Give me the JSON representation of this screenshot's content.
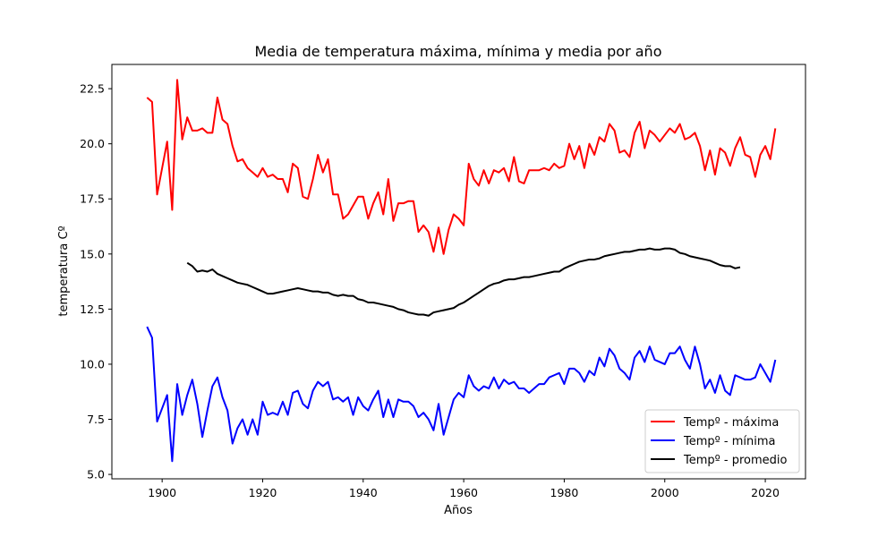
{
  "chart_data": {
    "type": "line",
    "title": "Media de temperatura máxima, mínima y media por año",
    "xlabel": "Años",
    "ylabel": "temperatura Cº",
    "xlim": [
      1890,
      2028
    ],
    "ylim": [
      4.8,
      23.6
    ],
    "xticks": [
      1900,
      1920,
      1940,
      1960,
      1980,
      2000,
      2020
    ],
    "yticks": [
      5.0,
      7.5,
      10.0,
      12.5,
      15.0,
      17.5,
      20.0,
      22.5
    ],
    "grid": false,
    "legend_position": "lower-right",
    "series": [
      {
        "name": "Tempº - máxima",
        "color": "#ff0000",
        "x": [
          1897,
          1898,
          1899,
          1900,
          1901,
          1902,
          1903,
          1904,
          1905,
          1906,
          1907,
          1908,
          1909,
          1910,
          1911,
          1912,
          1913,
          1914,
          1915,
          1916,
          1917,
          1918,
          1919,
          1920,
          1921,
          1922,
          1923,
          1924,
          1925,
          1926,
          1927,
          1928,
          1929,
          1930,
          1931,
          1932,
          1933,
          1934,
          1935,
          1936,
          1937,
          1938,
          1939,
          1940,
          1941,
          1942,
          1943,
          1944,
          1945,
          1946,
          1947,
          1948,
          1949,
          1950,
          1951,
          1952,
          1953,
          1954,
          1955,
          1956,
          1957,
          1958,
          1959,
          1960,
          1961,
          1962,
          1963,
          1964,
          1965,
          1966,
          1967,
          1968,
          1969,
          1970,
          1971,
          1972,
          1973,
          1974,
          1975,
          1976,
          1977,
          1978,
          1979,
          1980,
          1981,
          1982,
          1983,
          1984,
          1985,
          1986,
          1987,
          1988,
          1989,
          1990,
          1991,
          1992,
          1993,
          1994,
          1995,
          1996,
          1997,
          1998,
          1999,
          2000,
          2001,
          2002,
          2003,
          2004,
          2005,
          2006,
          2007,
          2008,
          2009,
          2010,
          2011,
          2012,
          2013,
          2014,
          2015,
          2016,
          2017,
          2018,
          2019,
          2020,
          2021,
          2022
        ],
        "values": [
          22.1,
          21.9,
          17.7,
          18.9,
          20.1,
          17.0,
          22.9,
          20.2,
          21.2,
          20.6,
          20.6,
          20.7,
          20.5,
          20.5,
          22.1,
          21.1,
          20.9,
          19.9,
          19.2,
          19.3,
          18.9,
          18.7,
          18.5,
          18.9,
          18.5,
          18.6,
          18.4,
          18.4,
          17.8,
          19.1,
          18.9,
          17.6,
          17.5,
          18.4,
          19.5,
          18.7,
          19.3,
          17.7,
          17.7,
          16.6,
          16.8,
          17.2,
          17.6,
          17.6,
          16.6,
          17.3,
          17.8,
          16.8,
          18.4,
          16.5,
          17.3,
          17.3,
          17.4,
          17.4,
          16.0,
          16.3,
          16.0,
          15.1,
          16.2,
          15.0,
          16.1,
          16.8,
          16.6,
          16.3,
          19.1,
          18.4,
          18.1,
          18.8,
          18.2,
          18.8,
          18.7,
          18.9,
          18.3,
          19.4,
          18.3,
          18.2,
          18.8,
          18.8,
          18.8,
          18.9,
          18.8,
          19.1,
          18.9,
          19.0,
          20.0,
          19.3,
          19.9,
          18.9,
          20.0,
          19.5,
          20.3,
          20.1,
          20.9,
          20.6,
          19.6,
          19.7,
          19.4,
          20.5,
          21.0,
          19.8,
          20.6,
          20.4,
          20.1,
          20.4,
          20.7,
          20.5,
          20.9,
          20.2,
          20.3,
          20.5,
          19.9,
          18.8,
          19.7,
          18.6,
          19.8,
          19.6,
          19.0,
          19.8,
          20.3,
          19.5,
          19.4,
          18.5,
          19.5,
          19.9,
          19.3,
          20.7
        ]
      },
      {
        "name": "Tempº - mínima",
        "color": "#0000ff",
        "x": [
          1897,
          1898,
          1899,
          1900,
          1901,
          1902,
          1903,
          1904,
          1905,
          1906,
          1907,
          1908,
          1909,
          1910,
          1911,
          1912,
          1913,
          1914,
          1915,
          1916,
          1917,
          1918,
          1919,
          1920,
          1921,
          1922,
          1923,
          1924,
          1925,
          1926,
          1927,
          1928,
          1929,
          1930,
          1931,
          1932,
          1933,
          1934,
          1935,
          1936,
          1937,
          1938,
          1939,
          1940,
          1941,
          1942,
          1943,
          1944,
          1945,
          1946,
          1947,
          1948,
          1949,
          1950,
          1951,
          1952,
          1953,
          1954,
          1955,
          1956,
          1957,
          1958,
          1959,
          1960,
          1961,
          1962,
          1963,
          1964,
          1965,
          1966,
          1967,
          1968,
          1969,
          1970,
          1971,
          1972,
          1973,
          1974,
          1975,
          1976,
          1977,
          1978,
          1979,
          1980,
          1981,
          1982,
          1983,
          1984,
          1985,
          1986,
          1987,
          1988,
          1989,
          1990,
          1991,
          1992,
          1993,
          1994,
          1995,
          1996,
          1997,
          1998,
          1999,
          2000,
          2001,
          2002,
          2003,
          2004,
          2005,
          2006,
          2007,
          2008,
          2009,
          2010,
          2011,
          2012,
          2013,
          2014,
          2015,
          2016,
          2017,
          2018,
          2019,
          2020,
          2021,
          2022
        ],
        "values": [
          11.7,
          11.2,
          7.4,
          8.0,
          8.6,
          5.6,
          9.1,
          7.7,
          8.6,
          9.3,
          8.2,
          6.7,
          7.9,
          9.0,
          9.4,
          8.5,
          7.9,
          6.4,
          7.1,
          7.5,
          6.8,
          7.5,
          6.8,
          8.3,
          7.7,
          7.8,
          7.7,
          8.3,
          7.7,
          8.7,
          8.8,
          8.2,
          8.0,
          8.8,
          9.2,
          9.0,
          9.2,
          8.4,
          8.5,
          8.3,
          8.5,
          7.7,
          8.5,
          8.1,
          7.9,
          8.4,
          8.8,
          7.6,
          8.4,
          7.6,
          8.4,
          8.3,
          8.3,
          8.1,
          7.6,
          7.8,
          7.5,
          7.0,
          8.2,
          6.8,
          7.6,
          8.4,
          8.7,
          8.5,
          9.5,
          9.0,
          8.8,
          9.0,
          8.9,
          9.4,
          8.9,
          9.3,
          9.1,
          9.2,
          8.9,
          8.9,
          8.7,
          8.9,
          9.1,
          9.1,
          9.4,
          9.5,
          9.6,
          9.1,
          9.8,
          9.8,
          9.6,
          9.2,
          9.7,
          9.5,
          10.3,
          9.9,
          10.7,
          10.4,
          9.8,
          9.6,
          9.3,
          10.3,
          10.6,
          10.1,
          10.8,
          10.2,
          10.1,
          10.0,
          10.5,
          10.5,
          10.8,
          10.2,
          9.8,
          10.8,
          10.0,
          8.9,
          9.3,
          8.7,
          9.5,
          8.8,
          8.6,
          9.5,
          9.4,
          9.3,
          9.3,
          9.4,
          10.0,
          9.6,
          9.2,
          10.2
        ]
      },
      {
        "name": "Tempº - promedio",
        "color": "#000000",
        "x": [
          1905,
          1906,
          1907,
          1908,
          1909,
          1910,
          1911,
          1912,
          1913,
          1914,
          1915,
          1916,
          1917,
          1918,
          1919,
          1920,
          1921,
          1922,
          1923,
          1924,
          1925,
          1926,
          1927,
          1928,
          1929,
          1930,
          1931,
          1932,
          1933,
          1934,
          1935,
          1936,
          1937,
          1938,
          1939,
          1940,
          1941,
          1942,
          1943,
          1944,
          1945,
          1946,
          1947,
          1948,
          1949,
          1950,
          1951,
          1952,
          1953,
          1954,
          1955,
          1956,
          1957,
          1958,
          1959,
          1960,
          1961,
          1962,
          1963,
          1964,
          1965,
          1966,
          1967,
          1968,
          1969,
          1970,
          1971,
          1972,
          1973,
          1974,
          1975,
          1976,
          1977,
          1978,
          1979,
          1980,
          1981,
          1982,
          1983,
          1984,
          1985,
          1986,
          1987,
          1988,
          1989,
          1990,
          1991,
          1992,
          1993,
          1994,
          1995,
          1996,
          1997,
          1998,
          1999,
          2000,
          2001,
          2002,
          2003,
          2004,
          2005,
          2006,
          2007,
          2008,
          2009,
          2010,
          2011,
          2012,
          2013,
          2014,
          2015
        ],
        "values": [
          14.6,
          14.45,
          14.2,
          14.25,
          14.2,
          14.3,
          14.1,
          14.0,
          13.9,
          13.8,
          13.7,
          13.65,
          13.6,
          13.5,
          13.4,
          13.3,
          13.2,
          13.2,
          13.25,
          13.3,
          13.35,
          13.4,
          13.45,
          13.4,
          13.35,
          13.3,
          13.3,
          13.25,
          13.25,
          13.15,
          13.1,
          13.15,
          13.1,
          13.1,
          12.95,
          12.9,
          12.8,
          12.8,
          12.75,
          12.7,
          12.65,
          12.6,
          12.5,
          12.45,
          12.35,
          12.3,
          12.25,
          12.25,
          12.2,
          12.35,
          12.4,
          12.45,
          12.5,
          12.55,
          12.7,
          12.8,
          12.95,
          13.1,
          13.25,
          13.4,
          13.55,
          13.65,
          13.7,
          13.8,
          13.85,
          13.85,
          13.9,
          13.95,
          13.95,
          14.0,
          14.05,
          14.1,
          14.15,
          14.2,
          14.2,
          14.35,
          14.45,
          14.55,
          14.65,
          14.7,
          14.75,
          14.75,
          14.8,
          14.9,
          14.95,
          15.0,
          15.05,
          15.1,
          15.1,
          15.15,
          15.2,
          15.2,
          15.25,
          15.2,
          15.2,
          15.25,
          15.25,
          15.2,
          15.05,
          15.0,
          14.9,
          14.85,
          14.8,
          14.75,
          14.7,
          14.6,
          14.5,
          14.45,
          14.45,
          14.35,
          14.4
        ]
      }
    ]
  }
}
